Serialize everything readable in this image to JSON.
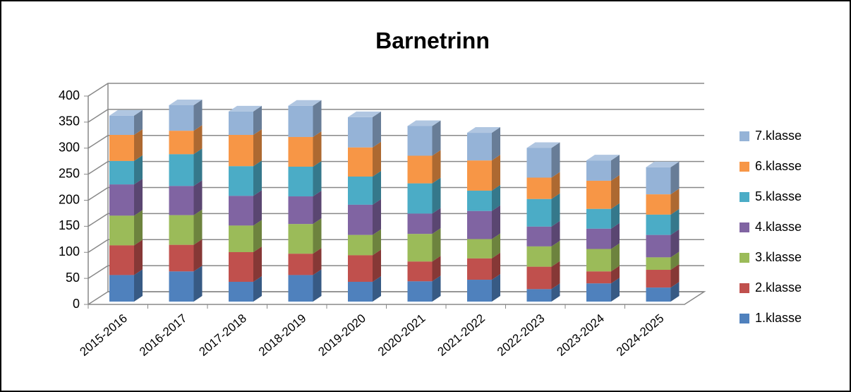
{
  "chart_data": {
    "type": "bar3d_stacked",
    "title": "Barnetrinn",
    "categories": [
      "2015-2016",
      "2016-2017",
      "2017-2018",
      "2018-2019",
      "2019-2020",
      "2020-2021",
      "2021-2022",
      "2022-2023",
      "2023-2024",
      "2024-2025"
    ],
    "series": [
      {
        "name": "1.klasse",
        "color": "#4f81bd",
        "values": [
          51,
          58,
          38,
          51,
          38,
          39,
          42,
          24,
          35,
          27
        ]
      },
      {
        "name": "2.klasse",
        "color": "#c0504d",
        "values": [
          57,
          51,
          57,
          41,
          51,
          38,
          41,
          43,
          23,
          34
        ]
      },
      {
        "name": "3.klasse",
        "color": "#9bbb59",
        "values": [
          57,
          57,
          51,
          57,
          39,
          53,
          37,
          39,
          43,
          24
        ]
      },
      {
        "name": "4.klasse",
        "color": "#8064a2",
        "values": [
          60,
          56,
          57,
          53,
          58,
          39,
          54,
          38,
          39,
          43
        ]
      },
      {
        "name": "5.klasse",
        "color": "#4bacc6",
        "values": [
          45,
          61,
          57,
          57,
          54,
          58,
          39,
          53,
          38,
          39
        ]
      },
      {
        "name": "6.klasse",
        "color": "#f79646",
        "values": [
          50,
          45,
          60,
          57,
          56,
          53,
          58,
          41,
          54,
          39
        ]
      },
      {
        "name": "7.klasse",
        "color": "#95b3d7",
        "values": [
          37,
          49,
          45,
          60,
          58,
          57,
          53,
          57,
          39,
          52
        ]
      }
    ],
    "ylim": [
      0,
      400
    ],
    "yticks": [
      0,
      50,
      100,
      150,
      200,
      250,
      300,
      350,
      400
    ],
    "grid": true,
    "legend": "right"
  }
}
